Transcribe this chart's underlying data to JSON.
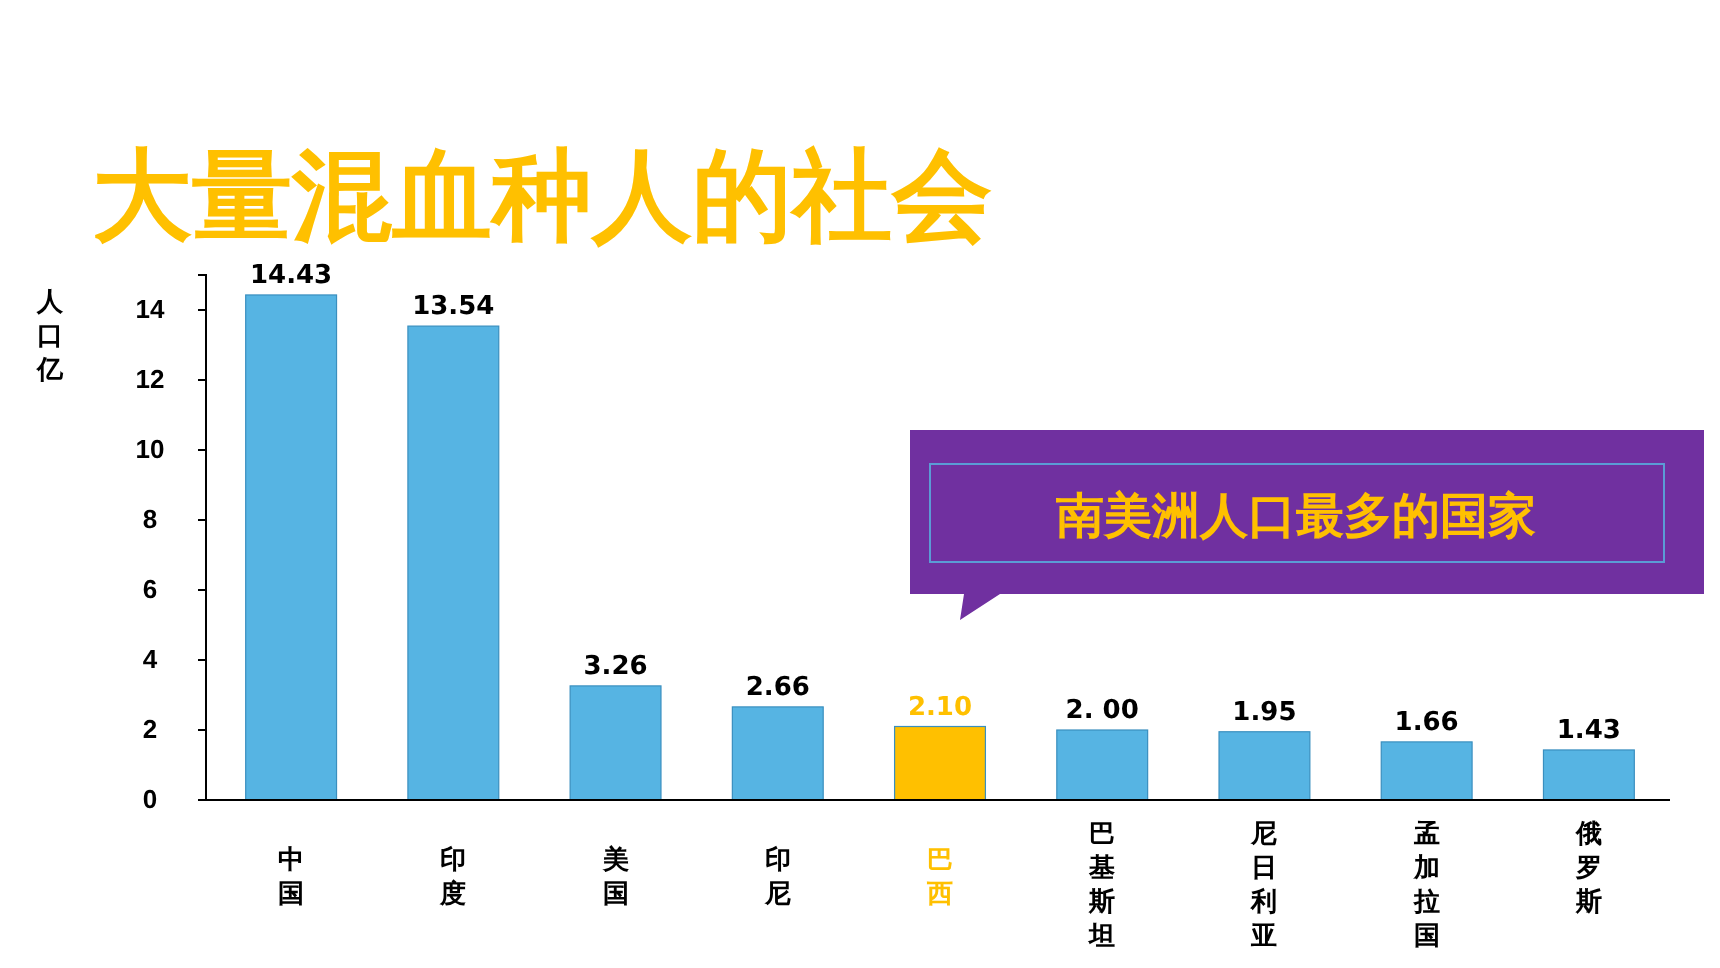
{
  "chart_data": {
    "type": "bar",
    "title": "大量混血种人的社会",
    "ylabel": "人口亿",
    "categories": [
      "中国",
      "印度",
      "美国",
      "印尼",
      "巴西",
      "巴基斯坦",
      "尼日利亚",
      "孟加拉国",
      "俄罗斯"
    ],
    "values": [
      14.43,
      13.54,
      3.26,
      2.66,
      2.1,
      2.0,
      1.95,
      1.66,
      1.43
    ],
    "value_labels": [
      "14.43",
      "13.54",
      "3.26",
      "2.66",
      "2.10",
      "2. 00",
      "1.95",
      "1.66",
      "1.43"
    ],
    "colors": [
      "#56b4e3",
      "#56b4e3",
      "#56b4e3",
      "#56b4e3",
      "#ffc000",
      "#56b4e3",
      "#56b4e3",
      "#56b4e3",
      "#56b4e3"
    ],
    "ylim": [
      0,
      15
    ],
    "yticks": [
      0,
      2,
      4,
      6,
      8,
      10,
      12,
      14
    ],
    "annotations": [
      "南美洲人口最多的国家"
    ]
  }
}
